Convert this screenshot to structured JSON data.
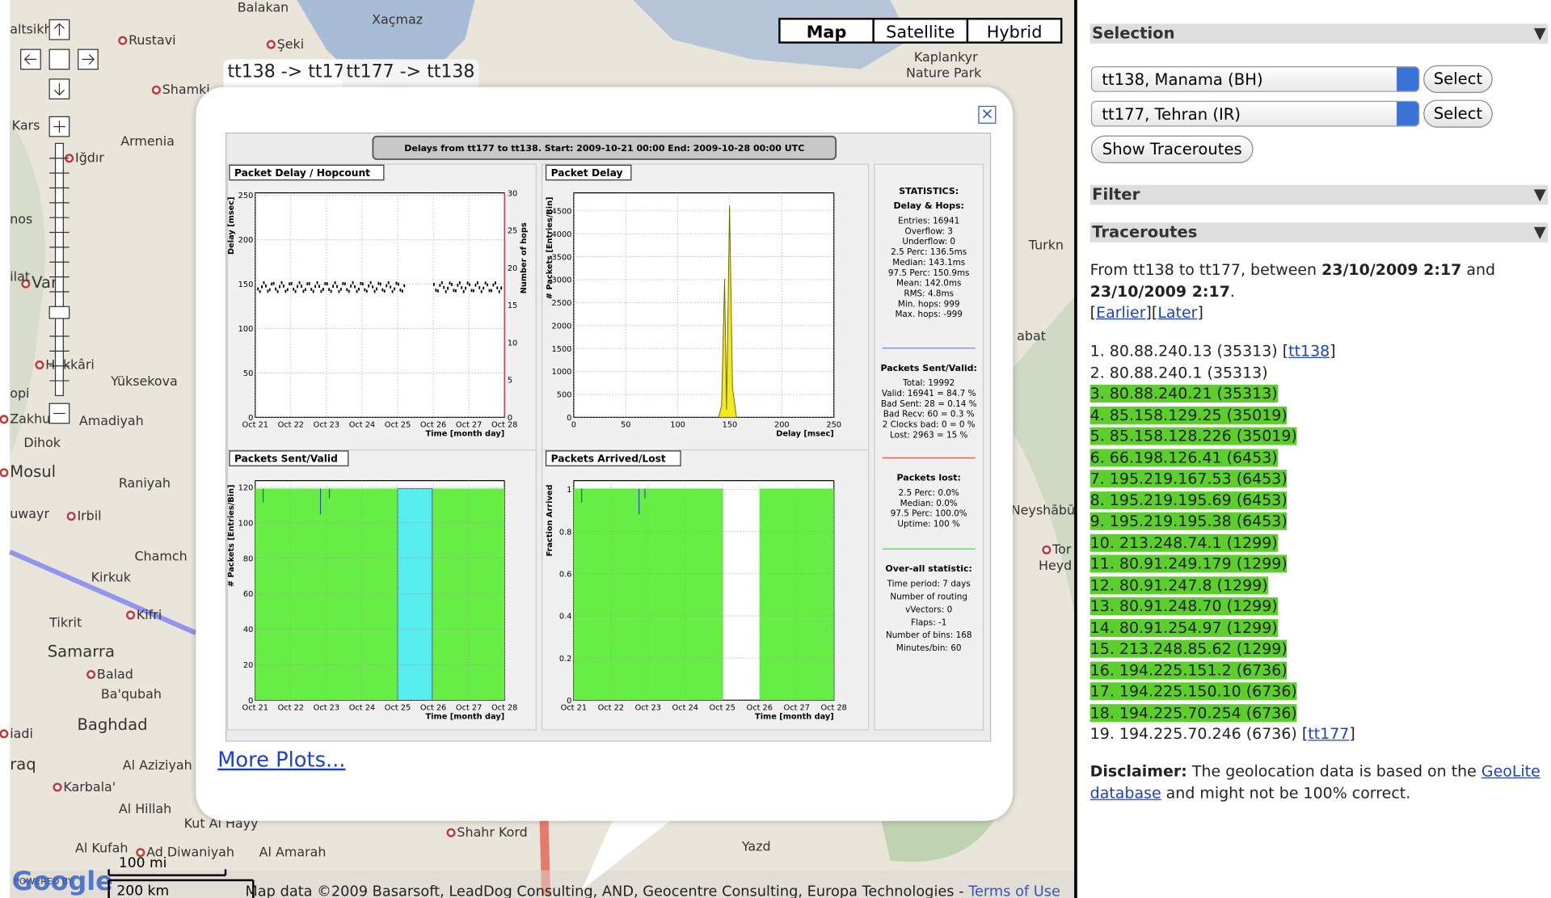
{
  "map": {
    "type_buttons": [
      "Map",
      "Satellite",
      "Hybrid"
    ],
    "labels": [
      "altsikh",
      "Rustavi",
      "Balakan",
      "Xaçmaz",
      "Şeki",
      "Kaplankyr",
      "Nature Park",
      "Shamki",
      "Kars",
      "Armenia",
      "Iğdır",
      "nos",
      "Turkn",
      "Van",
      "ilat",
      "abat",
      "Hakkâri",
      "Yüksekova",
      "opi",
      "Zakhu",
      "Amadiyah",
      "Dihok",
      "Mosul",
      "Raniyah",
      "uwayr",
      "Irbil",
      "Chamch",
      "Kirkuk",
      "Kifri",
      "Tikrit",
      "Samarra",
      "Balad",
      "Ba'qubah",
      "Baghdad",
      "iadi",
      "raq",
      "Al Aziziyah",
      "Karbala'",
      "Al Hillah",
      "Kut Al Hayy",
      "Ad Diwaniyah",
      "Al Kufah",
      "Al Amarah",
      "Shahr Kord",
      "Yazd",
      "Neyshābūr",
      "Tor",
      "Heyd"
    ],
    "powered_by": "POWERED BY",
    "logo": "Google",
    "scale_mi": "100 mi",
    "scale_km": "200 km",
    "attribution": "Map data ©2009 Basarsoft, LeadDog Consulting, AND, Geocentre Consulting, Europa Technologies - ",
    "terms": "Terms of Use"
  },
  "popup": {
    "tabs": [
      "tt138 -> tt177",
      "tt177 -> tt138"
    ],
    "close": "×",
    "plot_title": "Delays from tt177 to tt138.  Start: 2009-10-21 00:00  End:  2009-10-28 00:00 UTC",
    "panels": [
      {
        "title": "Packet Delay / Hopcount",
        "y_label": "Delay [msec]",
        "y2_label": "Number of hops",
        "x_label": "Time [month day]",
        "yticks": [
          0,
          50,
          100,
          150,
          200,
          250
        ],
        "y2ticks": [
          0,
          5,
          10,
          15,
          20,
          25,
          30
        ],
        "xticks": [
          "Oct 21",
          "Oct 22",
          "Oct 23",
          "Oct 24",
          "Oct 25",
          "Oct 26",
          "Oct 27",
          "Oct 28"
        ]
      },
      {
        "title": "Packet Delay",
        "y_label": "# Packets [Entries/Bin]",
        "x_label": "Delay [msec]",
        "yticks": [
          0,
          500,
          1000,
          1500,
          2000,
          2500,
          3000,
          3500,
          4000,
          4500
        ],
        "xticks": [
          0,
          50,
          100,
          150,
          200,
          250
        ]
      },
      {
        "title": "Packets Sent/Valid",
        "y_label": "# Packets [Entries/Bin]",
        "x_label": "Time [month day]",
        "yticks": [
          0,
          20,
          40,
          60,
          80,
          100,
          120
        ],
        "xticks": [
          "Oct 21",
          "Oct 22",
          "Oct 23",
          "Oct 24",
          "Oct 25",
          "Oct 26",
          "Oct 27",
          "Oct 28"
        ]
      },
      {
        "title": "Packets Arrived/Lost",
        "y_label": "Fraction Arrived",
        "x_label": "Time [month day]",
        "yticks": [
          0,
          0.2,
          0.4,
          0.6,
          0.8,
          1
        ],
        "xticks": [
          "Oct 21",
          "Oct 22",
          "Oct 23",
          "Oct 24",
          "Oct 25",
          "Oct 26",
          "Oct 27",
          "Oct 28"
        ]
      }
    ],
    "statistics": [
      {
        "headings": [
          "STATISTICS:",
          "Delay & Hops:"
        ],
        "lines": [
          "Entries: 16941",
          "Overflow: 3",
          "Underflow: 0",
          "2.5 Perc:  136.5ms",
          "Median:  143.1ms",
          "97.5 Perc:  150.9ms",
          "Mean:  142.0ms",
          "RMS:  4.8ms",
          "Min. hops: 999",
          "Max. hops: -999"
        ]
      },
      {
        "headings": [
          "Packets Sent/Valid:"
        ],
        "lines": [
          "Total: 19992",
          "Valid: 16941 = 84.7 %",
          "Bad Sent: 28 = 0.14 %",
          "Bad Recv: 60 = 0.3 %",
          "2 Clocks bad: 0 = 0 %",
          "Lost: 2963 = 15 %"
        ]
      },
      {
        "headings": [
          "Packets lost:"
        ],
        "lines": [
          "2.5 Perc:  0.0%",
          "Median:  0.0%",
          "97.5 Perc:  100.0%",
          "Uptime: 100 %"
        ]
      },
      {
        "headings": [
          "Over-all statistic:"
        ],
        "lines": [
          "Time period: 7 days",
          "Number of routing",
          "vVectors: 0",
          "Flaps: -1",
          "Number of bins: 168",
          "Minutes/bin: 60"
        ]
      }
    ],
    "more_plots": "More Plots..."
  },
  "sidebar": {
    "selection": "Selection",
    "source": "tt138, Manama (BH)",
    "destination": "tt177, Tehran (IR)",
    "select": "Select",
    "show": "Show Traceroutes",
    "filter": "Filter",
    "traceroutes": "Traceroutes",
    "arrow": "▼",
    "intro": [
      "From tt138 to tt177, between ",
      "23/10/2009 2:17",
      " and ",
      "23/10/2009 2:17",
      "."
    ],
    "nav": [
      "[",
      "Earlier",
      "][",
      "Later",
      "]"
    ],
    "hops": [
      {
        "text": "1. 80.88.240.13 (35313) [",
        "link": "tt138",
        "after": "]",
        "highlighted": false
      },
      {
        "text": "2. 80.88.240.1 (35313)",
        "highlighted": false
      },
      {
        "text": "3. 80.88.240.21 (35313)",
        "highlighted": true
      },
      {
        "text": "4. 85.158.129.25 (35019)",
        "highlighted": true
      },
      {
        "text": "5. 85.158.128.226 (35019)",
        "highlighted": true
      },
      {
        "text": "6. 66.198.126.41 (6453)",
        "highlighted": true
      },
      {
        "text": "7. 195.219.167.53 (6453)",
        "highlighted": true
      },
      {
        "text": "8. 195.219.195.69 (6453)",
        "highlighted": true
      },
      {
        "text": "9. 195.219.195.38 (6453)",
        "highlighted": true
      },
      {
        "text": "10. 213.248.74.1 (1299)",
        "highlighted": true
      },
      {
        "text": "11. 80.91.249.179 (1299)",
        "highlighted": true
      },
      {
        "text": "12. 80.91.247.8 (1299)",
        "highlighted": true
      },
      {
        "text": "13. 80.91.248.70 (1299)",
        "highlighted": true
      },
      {
        "text": "14. 80.91.254.97 (1299)",
        "highlighted": true
      },
      {
        "text": "15. 213.248.85.62 (1299)",
        "highlighted": true
      },
      {
        "text": "16. 194.225.151.2 (6736)",
        "highlighted": true
      },
      {
        "text": "17. 194.225.150.10 (6736)",
        "highlighted": true
      },
      {
        "text": "18. 194.225.70.254 (6736)",
        "highlighted": true
      },
      {
        "text": "19. 194.225.70.246 (6736) [",
        "link": "tt177",
        "after": "]",
        "highlighted": false
      }
    ],
    "disclaimer_label": "Disclaimer:",
    "disclaimer_text": " The geolocation data is based on the ",
    "disclaimer_link": "GeoLite database",
    "disclaimer_end": " and might not be 100% correct."
  }
}
